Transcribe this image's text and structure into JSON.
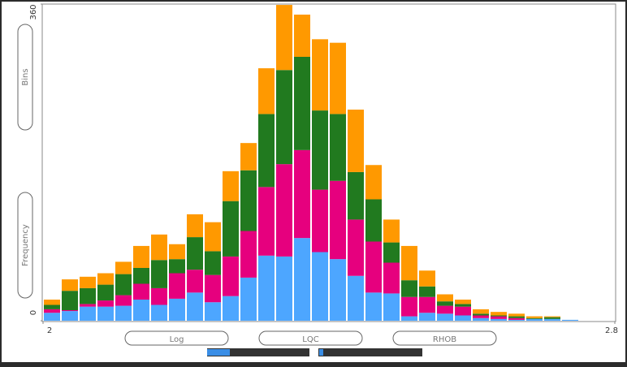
{
  "chart_data": {
    "type": "stacked-histogram",
    "y_axis_labels": [
      "Bins",
      "Frequency"
    ],
    "buttons": [
      "Log",
      "LQC",
      "RHOB"
    ],
    "bins": [
      2,
      2.025,
      2.05,
      2.075,
      2.1,
      2.125,
      2.15,
      2.175,
      2.2,
      2.225,
      2.25,
      2.275,
      2.3,
      2.325,
      2.35,
      2.375,
      2.4,
      2.425,
      2.45,
      2.475,
      2.5,
      2.525,
      2.55,
      2.575,
      2.6,
      2.625,
      2.65,
      2.675,
      2.7,
      2.725,
      2.75
    ],
    "series": [
      {
        "color": "#4da6ff",
        "values": [
          9,
          11,
          16,
          16,
          17,
          24,
          18,
          25,
          32,
          21,
          28,
          49,
          74,
          73,
          94,
          78,
          70,
          51,
          32,
          31,
          5,
          9,
          8,
          6,
          3,
          2,
          1,
          2,
          2,
          1
        ]
      },
      {
        "color": "#e6007e",
        "values": [
          4,
          1,
          3,
          7,
          12,
          18,
          19,
          29,
          26,
          31,
          45,
          53,
          78,
          105,
          100,
          71,
          89,
          64,
          58,
          35,
          22,
          18,
          9,
          10,
          3,
          3,
          2,
          0,
          0,
          0
        ]
      },
      {
        "color": "#217a1f",
        "values": [
          5,
          22,
          18,
          18,
          24,
          18,
          32,
          16,
          37,
          27,
          63,
          69,
          83,
          107,
          106,
          90,
          76,
          54,
          48,
          23,
          19,
          12,
          5,
          3,
          2,
          1,
          2,
          1,
          2,
          0
        ]
      },
      {
        "color": "#ff9900",
        "values": [
          6,
          13,
          13,
          13,
          14,
          25,
          29,
          17,
          26,
          33,
          34,
          31,
          52,
          74,
          48,
          81,
          81,
          71,
          39,
          26,
          39,
          18,
          8,
          5,
          5,
          4,
          3,
          2,
          1,
          0
        ]
      }
    ],
    "xlim": [
      2,
      2.8
    ],
    "xticks": [
      2,
      2.8
    ],
    "ylim": [
      0,
      360
    ],
    "yticks": [
      0,
      360
    ]
  }
}
